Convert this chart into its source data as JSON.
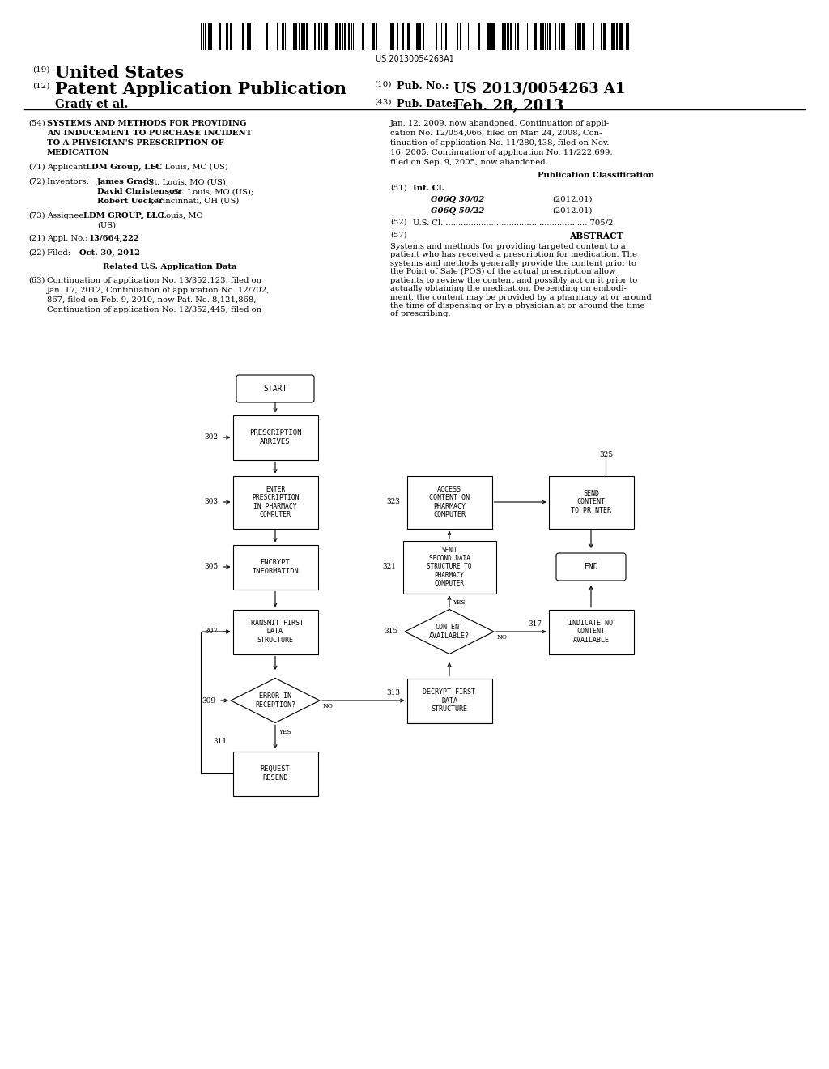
{
  "background_color": "#ffffff",
  "barcode_text": "US 20130054263A1",
  "header": {
    "num_19": "(19)",
    "united_states": "United States",
    "num_12": "(12)",
    "patent_app_pub": "Patent Application Publication",
    "num_10": "(10)",
    "pub_no_label": "Pub. No.:",
    "pub_no_value": "US 2013/0054263 A1",
    "inventor": "Grady et al.",
    "num_43": "(43)",
    "pub_date_label": "Pub. Date:",
    "pub_date_value": "Feb. 28, 2013"
  },
  "left_col": {
    "num_54": "(54)",
    "title_54": "SYSTEMS AND METHODS FOR PROVIDING\nAN INDUCEMENT TO PURCHASE INCIDENT\nTO A PHYSICIAN'S PRESCRIPTION OF\nMEDICATION",
    "num_71": "(71)",
    "applicant_label": "Applicant:",
    "applicant_val": "LDM Group, LLC, St. Louis, MO (US)",
    "num_72": "(72)",
    "inventors_label": "Inventors:",
    "inv1_bold": "James Grady",
    "inv1_rest": ", St. Louis, MO (US);",
    "inv2_bold": "David Christenson",
    "inv2_rest": ", St. Louis, MO (US);",
    "inv3_bold": "Robert Uecker",
    "inv3_rest": ", Cincinnati, OH (US)",
    "num_73": "(73)",
    "assignee_label": "Assignee:",
    "assignee_bold": "LDM GROUP, LLC",
    "assignee_rest": ", St. Louis, MO\n(US)",
    "num_21": "(21)",
    "appl_label": "Appl. No.:",
    "appl_val": "13/664,222",
    "num_22": "(22)",
    "filed_label": "Filed:",
    "filed_val": "Oct. 30, 2012",
    "related_title": "Related U.S. Application Data",
    "num_63": "(63)",
    "related_text": "Continuation of application No. 13/352,123, filed on\nJan. 17, 2012, Continuation of application No. 12/702,\n867, filed on Feb. 9, 2010, now Pat. No. 8,121,868,\nContinuation of application No. 12/352,445, filed on"
  },
  "right_col": {
    "continuation_text": "Jan. 12, 2009, now abandoned, Continuation of appli-\ncation No. 12/054,066, filed on Mar. 24, 2008, Con-\ntinuation of application No. 11/280,438, filed on Nov.\n16, 2005, Continuation of application No. 11/222,699,\nfiled on Sep. 9, 2005, now abandoned.",
    "pub_class_title": "Publication Classification",
    "num_51": "(51)",
    "int_cl_label": "Int. Cl.",
    "int_cl_1": "G06Q 30/02",
    "int_cl_1_year": "(2012.01)",
    "int_cl_2": "G06Q 50/22",
    "int_cl_2_year": "(2012.01)",
    "num_52": "(52)",
    "us_cl_label": "U.S. Cl.",
    "us_cl_dots": "........................................................",
    "us_cl_val": "705/2",
    "num_57": "(57)",
    "abstract_title": "ABSTRACT",
    "abstract_text": "Systems and methods for providing targeted content to a\npatient who has received a prescription for medication. The\nsystems and methods generally provide the content prior to\nthe Point of Sale (POS) of the actual prescription allow\npatients to review the content and possibly act on it prior to\nactually obtaining the medication. Depending on embodi-\nment, the content may be provided by a pharmacy at or around\nthe time of dispensing or by a physician at or around the time\nof prescribing."
  }
}
